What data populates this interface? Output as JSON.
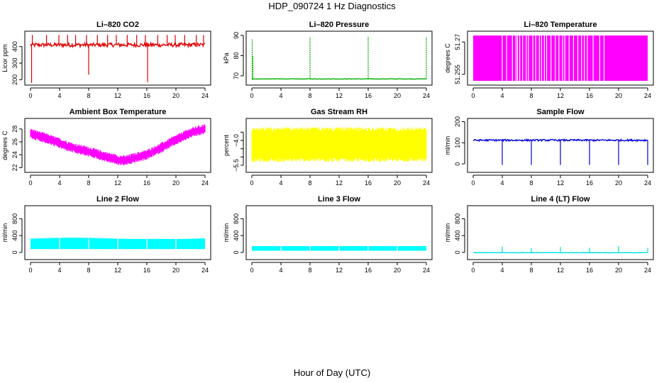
{
  "page": {
    "title": "HDP_090724  1 Hz Diagnostics",
    "xlabel": "Hour of Day (UTC)"
  },
  "chart_data": [
    {
      "id": "co2",
      "type": "line",
      "title": "Li–820 CO2",
      "ylabel": "Licor ppm",
      "color": "#e00000",
      "xlim": [
        0,
        24
      ],
      "xticks": [
        0,
        4,
        8,
        12,
        16,
        20,
        24
      ],
      "ylim": [
        180,
        480
      ],
      "yticks": [
        200,
        300,
        400
      ],
      "base": 410,
      "noise": 12,
      "spikes": [
        {
          "x": 0.15,
          "y": 180
        },
        {
          "x": 0.25,
          "y": 470
        },
        {
          "x": 2.2,
          "y": 470
        },
        {
          "x": 3.9,
          "y": 470
        },
        {
          "x": 5.1,
          "y": 470
        },
        {
          "x": 6.2,
          "y": 470
        },
        {
          "x": 7.7,
          "y": 470
        },
        {
          "x": 8.0,
          "y": 230
        },
        {
          "x": 9.2,
          "y": 470
        },
        {
          "x": 10.6,
          "y": 470
        },
        {
          "x": 11.8,
          "y": 470
        },
        {
          "x": 13.3,
          "y": 470
        },
        {
          "x": 14.6,
          "y": 470
        },
        {
          "x": 15.8,
          "y": 470
        },
        {
          "x": 16.1,
          "y": 185
        },
        {
          "x": 17.5,
          "y": 470
        },
        {
          "x": 18.8,
          "y": 470
        },
        {
          "x": 19.9,
          "y": 470
        },
        {
          "x": 21.2,
          "y": 470
        },
        {
          "x": 22.8,
          "y": 470
        },
        {
          "x": 23.8,
          "y": 470
        }
      ]
    },
    {
      "id": "pressure",
      "type": "line",
      "title": "Li–820 Pressure",
      "ylabel": "kPa",
      "color": "#00b000",
      "xlim": [
        0,
        24
      ],
      "xticks": [
        0,
        4,
        8,
        12,
        16,
        20,
        24
      ],
      "ylim": [
        66.5,
        91
      ],
      "yticks": [
        70,
        80,
        90
      ],
      "base": 68.5,
      "noise": 0.1,
      "spikes": [
        {
          "x": 0.05,
          "y": 88
        },
        {
          "x": 0.15,
          "y": 80
        },
        {
          "x": 8.0,
          "y": 89
        },
        {
          "x": 16.0,
          "y": 89.5
        },
        {
          "x": 24.0,
          "y": 89
        }
      ]
    },
    {
      "id": "temp",
      "type": "area",
      "title": "Li–820 Temperature",
      "ylabel": "degrees C",
      "color": "#ff00ff",
      "xlim": [
        0,
        24
      ],
      "xticks": [
        0,
        4,
        8,
        12,
        16,
        20,
        24
      ],
      "ylim": [
        51.251,
        51.274
      ],
      "yticks": [
        51.255,
        51.27
      ],
      "lo": 51.252,
      "hi": 51.273,
      "white_gaps": [
        4.0,
        4.6,
        5.4,
        5.9,
        6.1,
        6.4,
        6.8,
        7.3,
        7.6,
        8.2,
        8.6,
        9.1,
        9.4,
        9.8,
        10.1,
        10.7,
        11.3,
        11.8,
        12.3,
        12.6,
        13.2,
        13.8,
        14.4,
        14.9,
        15.3,
        15.7,
        16.5,
        17.4,
        18.0
      ]
    },
    {
      "id": "ambient",
      "type": "area",
      "title": "Ambient Box Temperature",
      "ylabel": "degrees C",
      "color": "#ff00ff",
      "xlim": [
        0,
        24
      ],
      "xticks": [
        0,
        4,
        8,
        12,
        16,
        20,
        24
      ],
      "ylim": [
        21.6,
        29.3
      ],
      "yticks": [
        22,
        24,
        26,
        28
      ],
      "centerline": [
        [
          0,
          27.3
        ],
        [
          2,
          26.6
        ],
        [
          4,
          25.8
        ],
        [
          6,
          25.0
        ],
        [
          8,
          24.5
        ],
        [
          10,
          23.8
        ],
        [
          12,
          23.2
        ],
        [
          13,
          23.1
        ],
        [
          14,
          23.4
        ],
        [
          16,
          24.0
        ],
        [
          18,
          25.1
        ],
        [
          20,
          26.3
        ],
        [
          22,
          27.4
        ],
        [
          24,
          28.0
        ]
      ],
      "band": 0.8
    },
    {
      "id": "rh",
      "type": "area",
      "title": "Gas Stream RH",
      "ylabel": "percent",
      "color": "#ffff00",
      "xlim": [
        0,
        24
      ],
      "xticks": [
        0,
        4,
        8,
        12,
        16,
        20,
        24
      ],
      "ylim": [
        -5.8,
        -2.8
      ],
      "yticks": [
        -5.5,
        -4.0
      ],
      "ytick_labels": [
        "−5.5",
        "−4.0"
      ],
      "extra_ticks": [
        -3.5,
        -4.5,
        -5.0
      ],
      "lo": -5.3,
      "hi": -3.2
    },
    {
      "id": "sample",
      "type": "line",
      "title": "Sample Flow",
      "ylabel": "ml/min",
      "color": "#0000dd",
      "xlim": [
        0,
        24
      ],
      "xticks": [
        0,
        4,
        8,
        12,
        16,
        20,
        24
      ],
      "ylim": [
        -30,
        205
      ],
      "yticks": [
        0,
        100,
        200
      ],
      "base": 112,
      "noise": 4,
      "spikes": [
        {
          "x": 4.0,
          "y": -5
        },
        {
          "x": 8.0,
          "y": -5
        },
        {
          "x": 12.0,
          "y": -5
        },
        {
          "x": 16.0,
          "y": -5
        },
        {
          "x": 20.0,
          "y": -5
        },
        {
          "x": 24.0,
          "y": -5
        }
      ]
    },
    {
      "id": "line2",
      "type": "area",
      "title": "Line 2 Flow",
      "ylabel": "ml/min",
      "color": "#00ffff",
      "xlim": [
        0,
        24
      ],
      "xticks": [
        0,
        4,
        8,
        12,
        16,
        20,
        24
      ],
      "ylim": [
        -120,
        1060
      ],
      "yticks": [
        0,
        400,
        800
      ],
      "lo": 80,
      "hi": 320,
      "white_gaps": [
        4.0,
        8.0,
        12.0,
        16.0,
        20.0
      ]
    },
    {
      "id": "line3",
      "type": "area",
      "title": "Line 3 Flow",
      "ylabel": "ml/min",
      "color": "#00ffff",
      "xlim": [
        0,
        24
      ],
      "xticks": [
        0,
        4,
        8,
        12,
        16,
        20,
        24
      ],
      "ylim": [
        -120,
        1060
      ],
      "yticks": [
        0,
        400,
        800
      ],
      "lo": 40,
      "hi": 150,
      "white_gaps": [
        4.0,
        8.0,
        12.0,
        16.0,
        20.0
      ]
    },
    {
      "id": "line4",
      "type": "line",
      "title": "Line 4 (LT) Flow",
      "ylabel": "ml/min",
      "color": "#00e0e0",
      "xlim": [
        0,
        24
      ],
      "xticks": [
        0,
        4,
        8,
        12,
        16,
        20,
        24
      ],
      "ylim": [
        -120,
        1060
      ],
      "yticks": [
        0,
        400,
        800
      ],
      "base": -5,
      "noise": 6,
      "spikes": [
        {
          "x": 4.0,
          "y": 140
        },
        {
          "x": 8.0,
          "y": 100
        },
        {
          "x": 12.0,
          "y": 130
        },
        {
          "x": 16.0,
          "y": 110
        },
        {
          "x": 20.0,
          "y": 150
        },
        {
          "x": 24.0,
          "y": 110
        }
      ]
    }
  ]
}
